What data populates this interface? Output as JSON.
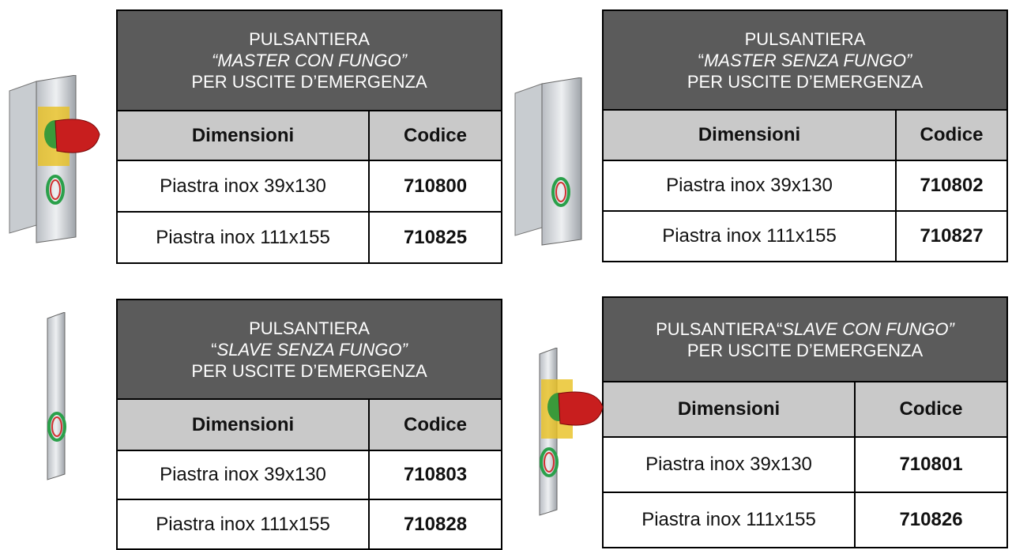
{
  "panels": [
    {
      "header": [
        [
          {
            "text": "PULSANTIERA"
          }
        ],
        [
          {
            "text": "“MASTER CON FUNGO”",
            "italic": true
          }
        ],
        [
          {
            "text": "PER USCITE D’EMERGENZA"
          }
        ]
      ],
      "columns": [
        "Dimensioni",
        "Codice"
      ],
      "rows": [
        [
          "Piastra inox 39x130",
          "710800"
        ],
        [
          "Piastra inox 111x155",
          "710825"
        ]
      ]
    },
    {
      "header": [
        [
          {
            "text": "PULSANTIERA"
          }
        ],
        [
          {
            "text": "“"
          },
          {
            "text": "MASTER SENZA FUNGO”",
            "italic": true
          }
        ],
        [
          {
            "text": "PER USCITE D’EMERGENZA"
          }
        ]
      ],
      "columns": [
        "Dimensioni",
        "Codice"
      ],
      "rows": [
        [
          "Piastra inox 39x130",
          "710802"
        ],
        [
          "Piastra inox 111x155",
          "710827"
        ]
      ]
    },
    {
      "header": [
        [
          {
            "text": "PULSANTIERA"
          }
        ],
        [
          {
            "text": "“"
          },
          {
            "text": "SLAVE SENZA FUNGO”",
            "italic": true
          }
        ],
        [
          {
            "text": "PER USCITE D’EMERGENZA"
          }
        ]
      ],
      "columns": [
        "Dimensioni",
        "Codice"
      ],
      "rows": [
        [
          "Piastra inox 39x130",
          "710803"
        ],
        [
          "Piastra inox 111x155",
          "710828"
        ]
      ]
    },
    {
      "header": [
        [
          {
            "text": "PULSANTIERA“"
          },
          {
            "text": "SLAVE CON FUNGO”",
            "italic": true
          }
        ],
        [
          {
            "text": "PER USCITE D’EMERGENZA"
          }
        ]
      ],
      "columns": [
        "Dimensioni",
        "Codice"
      ],
      "rows": [
        [
          "Piastra inox 39x130",
          "710801"
        ],
        [
          "Piastra inox 111x155",
          "710826"
        ]
      ]
    }
  ]
}
